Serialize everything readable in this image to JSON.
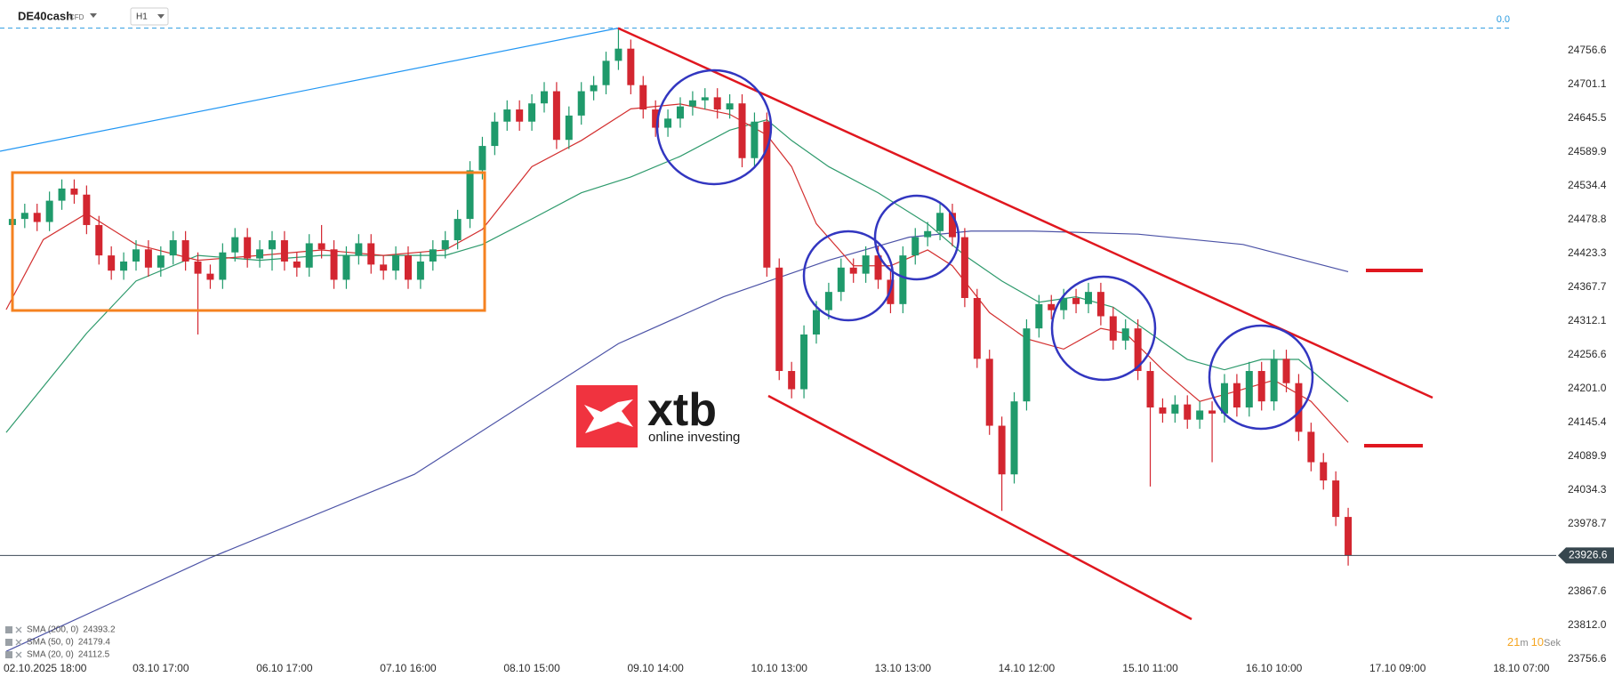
{
  "header": {
    "symbol": "DE40cash",
    "instrument_type": "CFD",
    "timeframe": "H1"
  },
  "annotations": {
    "level_label": "0.0"
  },
  "watermark": {
    "brand": "xtb",
    "tagline": "online investing"
  },
  "timer": {
    "minutes": "21",
    "minutes_unit": "m",
    "seconds": "10",
    "seconds_unit": "Sek"
  },
  "chart_data": {
    "type": "candlestick",
    "up_color": "#1f9a6b",
    "down_color": "#d32630",
    "grid": false,
    "xlim": [
      -1,
      124.1
    ],
    "ylim": [
      23740,
      24840
    ],
    "xticks": [
      {
        "value": 2,
        "label": "02.10.2025  18:00"
      },
      {
        "value": 12,
        "label": "03.10 17:00"
      },
      {
        "value": 22,
        "label": "06.10 17:00"
      },
      {
        "value": 32,
        "label": "07.10 16:00"
      },
      {
        "value": 42,
        "label": "08.10 15:00"
      },
      {
        "value": 52,
        "label": "09.10 14:00"
      },
      {
        "value": 62,
        "label": "10.10 13:00"
      },
      {
        "value": 72,
        "label": "13.10 13:00"
      },
      {
        "value": 82,
        "label": "14.10 12:00"
      },
      {
        "value": 92,
        "label": "15.10 11:00"
      },
      {
        "value": 102,
        "label": "16.10 10:00"
      },
      {
        "value": 112,
        "label": "17.10 09:00"
      },
      {
        "value": 122,
        "label": "18.10 07:00"
      }
    ],
    "yticks": [
      24756.6,
      24701.1,
      24645.5,
      24589.9,
      24534.4,
      24478.8,
      24423.3,
      24367.7,
      24312.1,
      24256.6,
      {
        "value": 24201,
        "label": "24201.0"
      },
      24145.4,
      24089.9,
      24034.3,
      23978.7,
      23867.6,
      {
        "value": 23812,
        "label": "23812.0"
      },
      23756.6
    ],
    "last_price": 23926.6,
    "open": [
      24470,
      24480,
      24490,
      24475,
      24510,
      24530,
      24520,
      24470,
      24420,
      24395,
      24410,
      24430,
      24400,
      24420,
      24445,
      24410,
      24390,
      24380,
      24425,
      24450,
      24415,
      24430,
      24445,
      24410,
      24400,
      24440,
      24430,
      24380,
      24420,
      24440,
      24405,
      24395,
      24420,
      24380,
      24410,
      24430,
      24445,
      24480,
      24560,
      24600,
      24640,
      24660,
      24640,
      24670,
      24690,
      24610,
      24650,
      24690,
      24700,
      24740,
      24760,
      24700,
      24660,
      24630,
      24645,
      24665,
      24675,
      24680,
      24660,
      24670,
      24580,
      24640,
      24400,
      24230,
      24200,
      24290,
      24330,
      24360,
      24400,
      24390,
      24420,
      24380,
      24340,
      24420,
      24450,
      24460,
      24490,
      24450,
      24350,
      24250,
      24140,
      24060,
      24180,
      24300,
      24340,
      24330,
      24350,
      24340,
      24360,
      24320,
      24280,
      24300,
      24230,
      24170,
      24160,
      24175,
      24150,
      24165,
      24160,
      24210,
      24170,
      24230,
      24180,
      24250,
      24210,
      24130,
      24080,
      24050,
      23990
    ],
    "high": [
      24495,
      24505,
      24505,
      24525,
      24545,
      24545,
      24535,
      24485,
      24435,
      24425,
      24445,
      24445,
      24435,
      24460,
      24460,
      24425,
      24405,
      24440,
      24465,
      24465,
      24445,
      24460,
      24460,
      24425,
      24455,
      24470,
      24445,
      24435,
      24455,
      24455,
      24420,
      24435,
      24435,
      24425,
      24445,
      24460,
      24495,
      24575,
      24615,
      24655,
      24675,
      24675,
      24685,
      24705,
      24705,
      24665,
      24705,
      24715,
      24755,
      24794,
      24775,
      24715,
      24675,
      24660,
      24680,
      24690,
      24695,
      24695,
      24685,
      24685,
      24655,
      24655,
      24415,
      24245,
      24305,
      24345,
      24375,
      24415,
      24415,
      24435,
      24435,
      24395,
      24435,
      24465,
      24475,
      24505,
      24505,
      24465,
      24365,
      24265,
      24155,
      24195,
      24315,
      24355,
      24355,
      24365,
      24365,
      24375,
      24375,
      24335,
      24315,
      24315,
      24245,
      24185,
      24190,
      24190,
      24180,
      24180,
      24225,
      24225,
      24245,
      24245,
      24265,
      24265,
      24225,
      24145,
      24095,
      24065,
      24005
    ],
    "low": [
      24455,
      24465,
      24460,
      24460,
      24495,
      24505,
      24455,
      24405,
      24380,
      24380,
      24395,
      24385,
      24385,
      24405,
      24395,
      24290,
      24365,
      24365,
      24410,
      24400,
      24400,
      24395,
      24395,
      24385,
      24385,
      24415,
      24365,
      24365,
      24405,
      24390,
      24380,
      24380,
      24365,
      24365,
      24395,
      24415,
      24430,
      24465,
      24545,
      24585,
      24625,
      24625,
      24625,
      24655,
      24595,
      24595,
      24635,
      24675,
      24685,
      24725,
      24685,
      24645,
      24615,
      24615,
      24630,
      24650,
      24660,
      24645,
      24645,
      24565,
      24565,
      24385,
      24215,
      24185,
      24185,
      24275,
      24315,
      24345,
      24375,
      24375,
      24365,
      24325,
      24325,
      24405,
      24435,
      24445,
      24435,
      24335,
      24235,
      24125,
      24000,
      24045,
      24165,
      24285,
      24315,
      24315,
      24325,
      24325,
      24305,
      24265,
      24265,
      24215,
      24040,
      24145,
      24145,
      24135,
      24135,
      24080,
      24145,
      24155,
      24155,
      24165,
      24165,
      24195,
      24115,
      24065,
      24035,
      23975,
      23910
    ],
    "close": [
      24480,
      24490,
      24475,
      24510,
      24530,
      24520,
      24470,
      24420,
      24395,
      24410,
      24430,
      24400,
      24420,
      24445,
      24410,
      24390,
      24380,
      24425,
      24450,
      24415,
      24430,
      24445,
      24410,
      24400,
      24440,
      24430,
      24380,
      24420,
      24440,
      24405,
      24395,
      24420,
      24380,
      24410,
      24430,
      24445,
      24480,
      24560,
      24600,
      24640,
      24660,
      24640,
      24670,
      24690,
      24610,
      24650,
      24690,
      24700,
      24740,
      24760,
      24700,
      24660,
      24630,
      24645,
      24665,
      24675,
      24680,
      24660,
      24670,
      24580,
      24640,
      24400,
      24230,
      24200,
      24290,
      24330,
      24360,
      24400,
      24390,
      24420,
      24380,
      24340,
      24420,
      24450,
      24460,
      24490,
      24450,
      24350,
      24250,
      24140,
      24060,
      24180,
      24300,
      24340,
      24330,
      24350,
      24340,
      24360,
      24320,
      24280,
      24300,
      24230,
      24170,
      24160,
      24175,
      24150,
      24165,
      24160,
      24210,
      24170,
      24230,
      24180,
      24250,
      24210,
      24130,
      24080,
      24050,
      23990,
      23926.6
    ],
    "series": [
      {
        "name": "SMA (200, 0)",
        "color": "#4b52a6",
        "last_value": 24393.2,
        "x": [
          -0.5,
          16,
          32.5,
          49,
          57.5,
          66,
          72.5,
          77.5,
          82.5,
          91,
          99.5,
          108
        ],
        "values": [
          23769,
          23923,
          24060,
          24275,
          24352,
          24412,
          24450,
          24460,
          24460,
          24455,
          24438,
          24393.2
        ]
      },
      {
        "name": "SMA (50, 0)",
        "color": "#2e9a6c",
        "last_value": 24179.4,
        "x": [
          -0.5,
          6,
          10,
          15,
          20,
          25,
          30,
          35,
          38,
          42,
          46,
          50,
          54,
          58,
          61,
          63,
          66,
          70,
          74,
          77,
          80,
          83,
          86,
          89,
          92,
          95,
          98,
          101,
          104,
          108
        ],
        "values": [
          24129,
          24292,
          24378,
          24420,
          24412,
          24420,
          24420,
          24420,
          24438,
          24480,
          24523,
          24549,
          24583,
          24626,
          24643,
          24609,
          24566,
          24523,
          24472,
          24420,
          24378,
          24343,
          24352,
          24335,
          24292,
          24249,
          24232,
          24249,
          24249,
          24179.4
        ]
      },
      {
        "name": "SMA (20, 0)",
        "color": "#d32f2f",
        "last_value": 24112.5,
        "x": [
          -0.5,
          2.5,
          6,
          10,
          15,
          20,
          25,
          30,
          35,
          38,
          42,
          46,
          50,
          54,
          58,
          61,
          63,
          65,
          68,
          71,
          74,
          76,
          79,
          82,
          85,
          88,
          90,
          93,
          96,
          99,
          102,
          105,
          108
        ],
        "values": [
          24331,
          24446,
          24489,
          24438,
          24412,
          24420,
          24429,
          24420,
          24429,
          24463,
          24566,
          24609,
          24661,
          24669,
          24652,
          24618,
          24566,
          24472,
          24403,
          24403,
          24429,
          24403,
          24326,
          24283,
          24266,
          24300,
          24292,
          24232,
          24180,
          24197,
          24215,
          24180,
          24112.5
        ]
      }
    ]
  }
}
